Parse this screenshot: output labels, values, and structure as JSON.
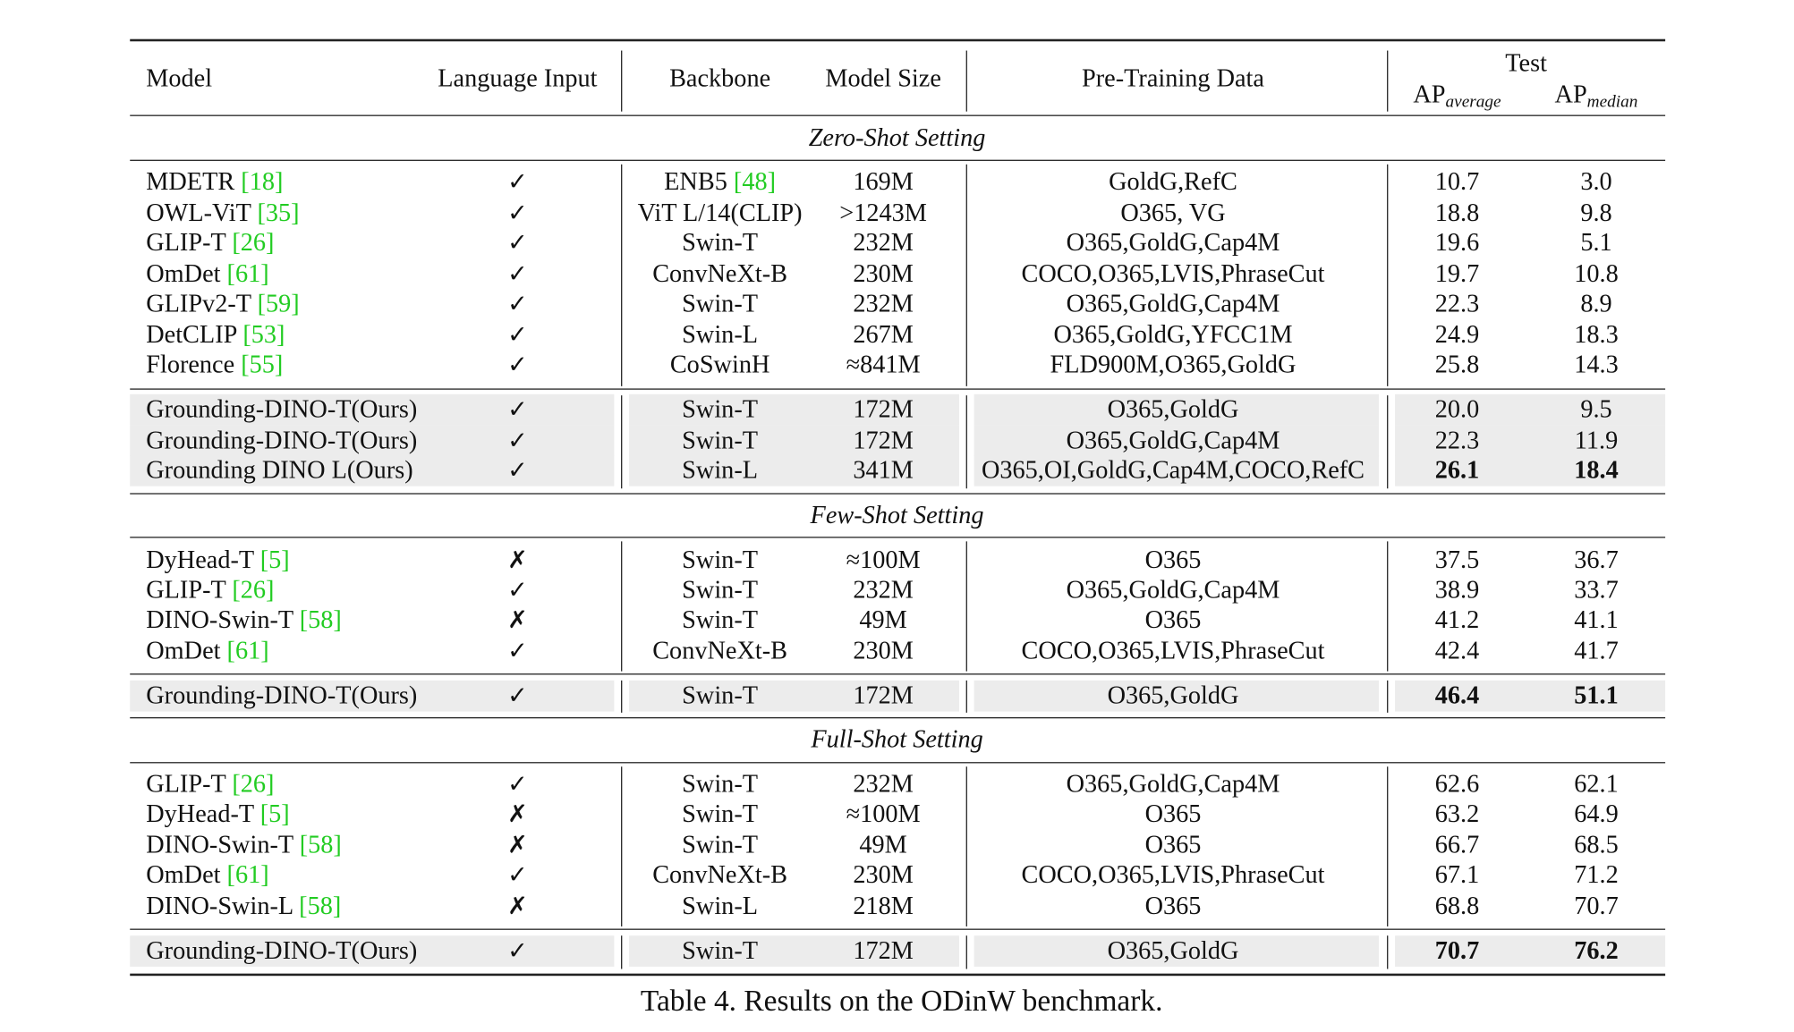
{
  "header": {
    "model": "Model",
    "language_input": "Language Input",
    "backbone": "Backbone",
    "model_size": "Model Size",
    "pretraining_data": "Pre-Training Data",
    "test": "Test",
    "ap_average_main": "AP",
    "ap_average_sub": "average",
    "ap_median_main": "AP",
    "ap_median_sub": "median"
  },
  "colors": {
    "citation": "#22cc22",
    "highlight_row": "#ececec"
  },
  "sections": [
    {
      "title": "Zero-Shot Setting",
      "rows": [
        {
          "model": "MDETR",
          "cite": "18",
          "lang": "✓",
          "backbone": "ENB5",
          "backbone_cite": "48",
          "size": "169M",
          "data": "GoldG,RefC",
          "ap_avg": "10.7",
          "ap_med": "3.0"
        },
        {
          "model": "OWL-ViT",
          "cite": "35",
          "lang": "✓",
          "backbone": "ViT L/14(CLIP)",
          "size": ">1243M",
          "data": "O365, VG",
          "ap_avg": "18.8",
          "ap_med": "9.8"
        },
        {
          "model": "GLIP-T",
          "cite": "26",
          "lang": "✓",
          "backbone": "Swin-T",
          "size": "232M",
          "data": "O365,GoldG,Cap4M",
          "ap_avg": "19.6",
          "ap_med": "5.1"
        },
        {
          "model": "OmDet",
          "cite": "61",
          "lang": "✓",
          "backbone": "ConvNeXt-B",
          "size": "230M",
          "data": "COCO,O365,LVIS,PhraseCut",
          "ap_avg": "19.7",
          "ap_med": "10.8"
        },
        {
          "model": "GLIPv2-T",
          "cite": "59",
          "lang": "✓",
          "backbone": "Swin-T",
          "size": "232M",
          "data": "O365,GoldG,Cap4M",
          "ap_avg": "22.3",
          "ap_med": "8.9"
        },
        {
          "model": "DetCLIP",
          "cite": "53",
          "lang": "✓",
          "backbone": "Swin-L",
          "size": "267M",
          "data": "O365,GoldG,YFCC1M",
          "ap_avg": "24.9",
          "ap_med": "18.3"
        },
        {
          "model": "Florence",
          "cite": "55",
          "lang": "✓",
          "backbone": "CoSwinH",
          "size": "≈841M",
          "data": "FLD900M,O365,GoldG",
          "ap_avg": "25.8",
          "ap_med": "14.3"
        }
      ],
      "ours": [
        {
          "model": "Grounding-DINO-T(Ours)",
          "lang": "✓",
          "backbone": "Swin-T",
          "size": "172M",
          "data": "O365,GoldG",
          "ap_avg": "20.0",
          "ap_med": "9.5"
        },
        {
          "model": "Grounding-DINO-T(Ours)",
          "lang": "✓",
          "backbone": "Swin-T",
          "size": "172M",
          "data": "O365,GoldG,Cap4M",
          "ap_avg": "22.3",
          "ap_med": "11.9"
        },
        {
          "model": "Grounding DINO L(Ours)",
          "lang": "✓",
          "backbone": "Swin-L",
          "size": "341M",
          "data": "O365,OI,GoldG,Cap4M,COCO,RefC",
          "ap_avg": "26.1",
          "ap_med": "18.4",
          "bold": true
        }
      ]
    },
    {
      "title": "Few-Shot Setting",
      "rows": [
        {
          "model": "DyHead-T",
          "cite": "5",
          "lang": "✗",
          "backbone": "Swin-T",
          "size": "≈100M",
          "data": "O365",
          "ap_avg": "37.5",
          "ap_med": "36.7"
        },
        {
          "model": "GLIP-T",
          "cite": "26",
          "lang": "✓",
          "backbone": "Swin-T",
          "size": "232M",
          "data": "O365,GoldG,Cap4M",
          "ap_avg": "38.9",
          "ap_med": "33.7"
        },
        {
          "model": "DINO-Swin-T",
          "cite": "58",
          "lang": "✗",
          "backbone": "Swin-T",
          "size": "49M",
          "data": "O365",
          "ap_avg": "41.2",
          "ap_med": "41.1"
        },
        {
          "model": "OmDet",
          "cite": "61",
          "lang": "✓",
          "backbone": "ConvNeXt-B",
          "size": "230M",
          "data": "COCO,O365,LVIS,PhraseCut",
          "ap_avg": "42.4",
          "ap_med": "41.7"
        }
      ],
      "ours": [
        {
          "model": "Grounding-DINO-T(Ours)",
          "lang": "✓",
          "backbone": "Swin-T",
          "size": "172M",
          "data": "O365,GoldG",
          "ap_avg": "46.4",
          "ap_med": "51.1",
          "bold": true
        }
      ]
    },
    {
      "title": "Full-Shot Setting",
      "rows": [
        {
          "model": "GLIP-T",
          "cite": "26",
          "lang": "✓",
          "backbone": "Swin-T",
          "size": "232M",
          "data": "O365,GoldG,Cap4M",
          "ap_avg": "62.6",
          "ap_med": "62.1"
        },
        {
          "model": "DyHead-T",
          "cite": "5",
          "lang": "✗",
          "backbone": "Swin-T",
          "size": "≈100M",
          "data": "O365",
          "ap_avg": "63.2",
          "ap_med": "64.9"
        },
        {
          "model": "DINO-Swin-T",
          "cite": "58",
          "lang": "✗",
          "backbone": "Swin-T",
          "size": "49M",
          "data": "O365",
          "ap_avg": "66.7",
          "ap_med": "68.5"
        },
        {
          "model": "OmDet",
          "cite": "61",
          "lang": "✓",
          "backbone": "ConvNeXt-B",
          "size": "230M",
          "data": "COCO,O365,LVIS,PhraseCut",
          "ap_avg": "67.1",
          "ap_med": "71.2"
        },
        {
          "model": "DINO-Swin-L",
          "cite": "58",
          "lang": "✗",
          "backbone": "Swin-L",
          "size": "218M",
          "data": "O365",
          "ap_avg": "68.8",
          "ap_med": "70.7"
        }
      ],
      "ours": [
        {
          "model": "Grounding-DINO-T(Ours)",
          "lang": "✓",
          "backbone": "Swin-T",
          "size": "172M",
          "data": "O365,GoldG",
          "ap_avg": "70.7",
          "ap_med": "76.2",
          "bold": true
        }
      ]
    }
  ],
  "caption": "Table 4. Results on the ODinW benchmark."
}
